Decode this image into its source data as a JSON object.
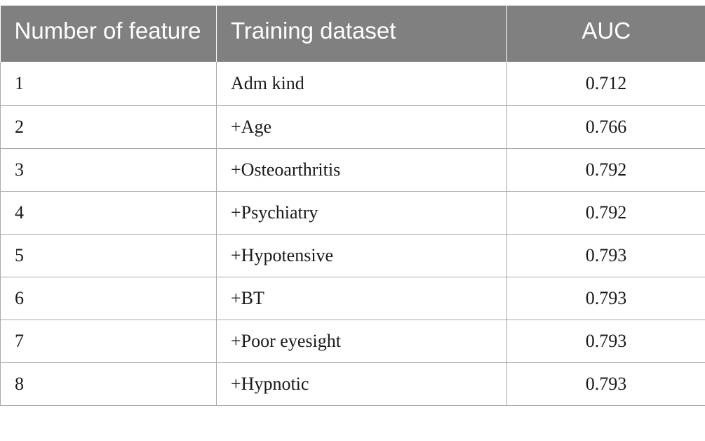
{
  "table": {
    "headers": {
      "number": "Number of feature",
      "dataset": "Training dataset",
      "auc": "AUC"
    },
    "rows": [
      {
        "number": "1",
        "dataset": "Adm kind",
        "auc": "0.712"
      },
      {
        "number": "2",
        "dataset": "+Age",
        "auc": "0.766"
      },
      {
        "number": "3",
        "dataset": "+Osteoarthritis",
        "auc": "0.792"
      },
      {
        "number": "4",
        "dataset": "+Psychiatry",
        "auc": "0.792"
      },
      {
        "number": "5",
        "dataset": "+Hypotensive",
        "auc": "0.793"
      },
      {
        "number": "6",
        "dataset": "+BT",
        "auc": "0.793"
      },
      {
        "number": "7",
        "dataset": "+Poor eyesight",
        "auc": "0.793"
      },
      {
        "number": "8",
        "dataset": "+Hypnotic",
        "auc": "0.793"
      }
    ]
  },
  "colors": {
    "header_bg": "#808080",
    "header_text": "#ffffff",
    "rule": "#a8a8a8"
  }
}
